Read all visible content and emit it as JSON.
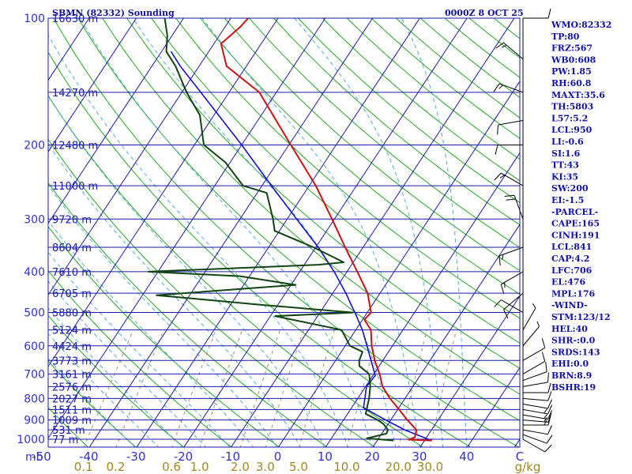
{
  "header": {
    "station": "SBMN (82332) Sounding",
    "time": "0000Z  8 OCT 25"
  },
  "colors": {
    "isobar": "#1a1aa6",
    "isotherm": "#1a1aa6",
    "dry_adiabat": "#22aa22",
    "moist_adiabat": "#55aadd",
    "mixing_ratio": "#999966",
    "temperature": "#cc1111",
    "dewpoint": "#114411",
    "parcel": "#1111cc",
    "wind": "#000000",
    "text": "#3333cc",
    "mixing_label": "#a08a22"
  },
  "indices": [
    "WMO:82332",
    "TP:80",
    "FRZ:567",
    "WB0:608",
    "PW:1.85",
    "RH:60.8",
    "MAXT:35.6",
    "TH:5803",
    "L57:5.2",
    "LCL:950",
    "LI:-0.6",
    "SI:1.6",
    "TT:43",
    "KI:35",
    "SW:200",
    "EI:-1.5",
    "-PARCEL-",
    "CAPE:165",
    "CINH:191",
    "LCL:841",
    "CAP:4.2",
    "LFC:706",
    "EL:476",
    "MPL:176",
    "-WIND-",
    "STM:123/12",
    "HEL:40",
    "SHR-:0.0",
    "SRDS:143",
    "EHI:0.0",
    "BRN:8.9",
    "BSHR:19"
  ],
  "chart_data": {
    "type": "skew-T log-P",
    "ylabel_unit": "mb",
    "xlabel_unit": "C",
    "mixing_unit": "g/kg",
    "pressure_ticks": [
      {
        "p": 100,
        "label": "100"
      },
      {
        "p": 200,
        "label": "200"
      },
      {
        "p": 300,
        "label": "300"
      },
      {
        "p": 400,
        "label": "400"
      },
      {
        "p": 500,
        "label": "500"
      },
      {
        "p": 600,
        "label": "600"
      },
      {
        "p": 700,
        "label": "700"
      },
      {
        "p": 800,
        "label": "800"
      },
      {
        "p": 900,
        "label": "900"
      },
      {
        "p": 1000,
        "label": "1000"
      }
    ],
    "height_labels": [
      {
        "p": 100,
        "label": "16630 m"
      },
      {
        "p": 150,
        "label": "14270 m"
      },
      {
        "p": 200,
        "label": "12480 m"
      },
      {
        "p": 250,
        "label": "11000 m"
      },
      {
        "p": 300,
        "label": "9720 m"
      },
      {
        "p": 350,
        "label": "8604 m"
      },
      {
        "p": 400,
        "label": "7610 m"
      },
      {
        "p": 450,
        "label": "6705 m"
      },
      {
        "p": 500,
        "label": "5880 m"
      },
      {
        "p": 550,
        "label": "5124 m"
      },
      {
        "p": 600,
        "label": "4424 m"
      },
      {
        "p": 650,
        "label": "3773 m"
      },
      {
        "p": 700,
        "label": "3161 m"
      },
      {
        "p": 750,
        "label": "2576 m"
      },
      {
        "p": 800,
        "label": "2027 m"
      },
      {
        "p": 850,
        "label": "1511 m"
      },
      {
        "p": 900,
        "label": "1009 m"
      },
      {
        "p": 950,
        "label": "531 m"
      },
      {
        "p": 1000,
        "label": "77 m"
      }
    ],
    "temperature_ticks": [
      {
        "t": -50,
        "label": "-50"
      },
      {
        "t": -40,
        "label": "-40"
      },
      {
        "t": -30,
        "label": "-30"
      },
      {
        "t": -20,
        "label": "-20"
      },
      {
        "t": -10,
        "label": "-10"
      },
      {
        "t": 0,
        "label": "0"
      },
      {
        "t": 10,
        "label": "10"
      },
      {
        "t": 20,
        "label": "20"
      },
      {
        "t": 30,
        "label": "30"
      },
      {
        "t": 40,
        "label": "40"
      }
    ],
    "mixing_ratio_ticks": [
      {
        "w": 0.1,
        "label": "0.1"
      },
      {
        "w": 0.2,
        "label": "0.2"
      },
      {
        "w": 0.6,
        "label": "0.6"
      },
      {
        "w": 1.0,
        "label": "1.0"
      },
      {
        "w": 2.0,
        "label": "2.0"
      },
      {
        "w": 3.0,
        "label": "3.0"
      },
      {
        "w": 5.0,
        "label": "5.0"
      },
      {
        "w": 10.0,
        "label": "10.0"
      },
      {
        "w": 20.0,
        "label": "20.0"
      },
      {
        "w": 30.0,
        "label": "30.0"
      }
    ],
    "p_range": [
      100,
      1050
    ],
    "temperature_profile": [
      [
        1007,
        31.5
      ],
      [
        1002,
        26.5
      ],
      [
        990,
        27.5
      ],
      [
        950,
        26.8
      ],
      [
        900,
        23.5
      ],
      [
        850,
        20.3
      ],
      [
        800,
        16.8
      ],
      [
        750,
        13.6
      ],
      [
        700,
        11.2
      ],
      [
        650,
        8.3
      ],
      [
        600,
        5.6
      ],
      [
        550,
        3.2
      ],
      [
        520,
        0.4
      ],
      [
        500,
        0.8
      ],
      [
        450,
        -2.6
      ],
      [
        400,
        -7.8
      ],
      [
        350,
        -13.8
      ],
      [
        300,
        -20.5
      ],
      [
        250,
        -28.6
      ],
      [
        200,
        -39.6
      ],
      [
        150,
        -53.6
      ],
      [
        130,
        -64.2
      ],
      [
        115,
        -68.5
      ],
      [
        105,
        -66.8
      ],
      [
        100,
        -66.3
      ]
    ],
    "dewpoint_profile": [
      [
        1007,
        23.4
      ],
      [
        995,
        17.5
      ],
      [
        970,
        21.0
      ],
      [
        950,
        20.8
      ],
      [
        920,
        19.0
      ],
      [
        900,
        17.2
      ],
      [
        870,
        13.8
      ],
      [
        800,
        12.4
      ],
      [
        750,
        11.0
      ],
      [
        700,
        9.0
      ],
      [
        670,
        5.8
      ],
      [
        650,
        5.0
      ],
      [
        620,
        4.5
      ],
      [
        600,
        1.0
      ],
      [
        550,
        -3.0
      ],
      [
        510,
        -19.0
      ],
      [
        500,
        -3.0
      ],
      [
        480,
        -23.0
      ],
      [
        455,
        -47.0
      ],
      [
        430,
        -19.0
      ],
      [
        410,
        -32.0
      ],
      [
        400,
        -52.0
      ],
      [
        385,
        -17.0
      ],
      [
        380,
        -12.0
      ],
      [
        350,
        -20.5
      ],
      [
        320,
        -31.0
      ],
      [
        300,
        -33.0
      ],
      [
        260,
        -38.0
      ],
      [
        250,
        -44.0
      ],
      [
        220,
        -51.0
      ],
      [
        200,
        -58.0
      ],
      [
        170,
        -63.0
      ],
      [
        150,
        -69.0
      ],
      [
        130,
        -75.0
      ],
      [
        120,
        -79.0
      ],
      [
        110,
        -81.0
      ],
      [
        100,
        -84.0
      ]
    ],
    "parcel_profile": [
      [
        1007,
        31.5
      ],
      [
        950,
        24.3
      ],
      [
        900,
        18.9
      ],
      [
        850,
        13.5
      ],
      [
        841,
        12.5
      ],
      [
        800,
        11.5
      ],
      [
        750,
        10.2
      ],
      [
        706,
        10.5
      ],
      [
        650,
        7.5
      ],
      [
        600,
        4.6
      ],
      [
        550,
        1.4
      ],
      [
        500,
        -2.6
      ],
      [
        476,
        -4.8
      ],
      [
        450,
        -7.2
      ],
      [
        400,
        -12.7
      ],
      [
        350,
        -19.5
      ],
      [
        300,
        -28.0
      ],
      [
        250,
        -38.0
      ],
      [
        200,
        -50.0
      ],
      [
        150,
        -66.0
      ],
      [
        130,
        -74.0
      ],
      [
        120,
        -78.0
      ]
    ],
    "wind_barbs": [
      {
        "p": 1000,
        "dir": 120,
        "spd": 10
      },
      {
        "p": 975,
        "dir": 110,
        "spd": 10
      },
      {
        "p": 950,
        "dir": 100,
        "spd": 10
      },
      {
        "p": 925,
        "dir": 90,
        "spd": 15
      },
      {
        "p": 900,
        "dir": 95,
        "spd": 15
      },
      {
        "p": 875,
        "dir": 100,
        "spd": 15
      },
      {
        "p": 850,
        "dir": 100,
        "spd": 15
      },
      {
        "p": 825,
        "dir": 100,
        "spd": 10
      },
      {
        "p": 800,
        "dir": 95,
        "spd": 10
      },
      {
        "p": 775,
        "dir": 90,
        "spd": 10
      },
      {
        "p": 750,
        "dir": 80,
        "spd": 10
      },
      {
        "p": 725,
        "dir": 70,
        "spd": 10
      },
      {
        "p": 700,
        "dir": 60,
        "spd": 10
      },
      {
        "p": 650,
        "dir": 60,
        "spd": 10
      },
      {
        "p": 600,
        "dir": 40,
        "spd": 5
      },
      {
        "p": 550,
        "dir": 30,
        "spd": 5
      },
      {
        "p": 500,
        "dir": 300,
        "spd": 10
      },
      {
        "p": 450,
        "dir": 230,
        "spd": 10
      },
      {
        "p": 400,
        "dir": 240,
        "spd": 15
      },
      {
        "p": 350,
        "dir": 250,
        "spd": 15
      },
      {
        "p": 300,
        "dir": 340,
        "spd": 20
      },
      {
        "p": 250,
        "dir": 300,
        "spd": 15
      },
      {
        "p": 200,
        "dir": 270,
        "spd": 10
      },
      {
        "p": 175,
        "dir": 260,
        "spd": 10
      },
      {
        "p": 150,
        "dir": 290,
        "spd": 15
      },
      {
        "p": 125,
        "dir": 310,
        "spd": 15
      },
      {
        "p": 100,
        "dir": 90,
        "spd": 10
      }
    ]
  }
}
